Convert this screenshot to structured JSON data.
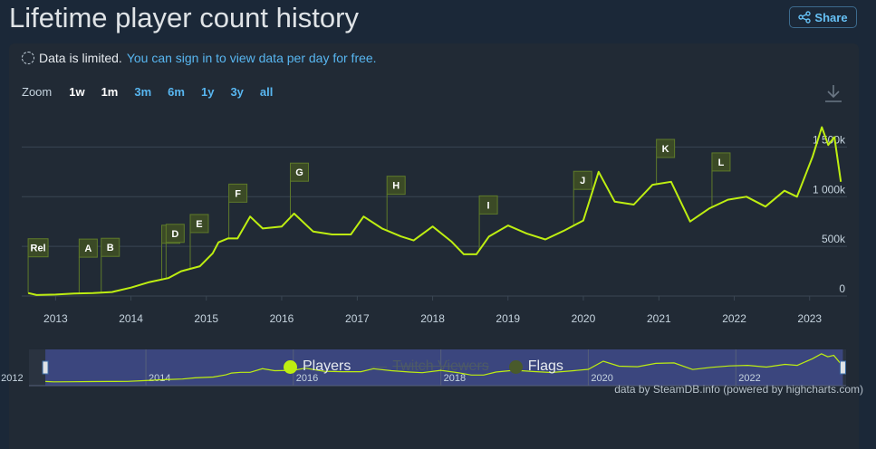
{
  "header": {
    "title": "Lifetime player count history",
    "share_label": "Share"
  },
  "notice": {
    "text": "Data is limited.",
    "link": "You can sign in to view data per day for free."
  },
  "zoom": {
    "label": "Zoom",
    "buttons": [
      "1w",
      "1m",
      "3m",
      "6m",
      "1y",
      "3y",
      "all"
    ],
    "active": [
      "1w",
      "1m"
    ]
  },
  "legend": [
    {
      "name": "Players",
      "color": "#beee11",
      "visible": true
    },
    {
      "name": "Twitch Viewers",
      "color": "#4d5a66",
      "visible": false
    },
    {
      "name": "Flags",
      "color": "#495a2b",
      "visible": true
    }
  ],
  "credits": "data by SteamDB.info (powered by highcharts.com)",
  "colors": {
    "line": "#beee11",
    "flag_bg": "#3b4a26",
    "flag_border": "#5e7a2a",
    "navigator_mask": "#3e4a8a"
  },
  "chart_data": {
    "type": "line",
    "xlabel": "",
    "ylabel": "",
    "xlim": [
      "2012-07-21",
      "2023-07-01"
    ],
    "ylim": [
      0,
      1850000
    ],
    "y_ticks": [
      0,
      500000,
      1000000,
      1500000
    ],
    "y_tick_labels": [
      "0",
      "500k",
      "1 000k",
      "1 500k"
    ],
    "x_tick_labels": [
      "2013",
      "2014",
      "2015",
      "2016",
      "2017",
      "2018",
      "2019",
      "2020",
      "2021",
      "2022",
      "2023"
    ],
    "grid": true,
    "series": [
      {
        "name": "Players",
        "points": [
          [
            "2012-08-21",
            30000
          ],
          [
            "2012-10-01",
            10000
          ],
          [
            "2013-01-01",
            15000
          ],
          [
            "2013-04-01",
            25000
          ],
          [
            "2013-07-01",
            30000
          ],
          [
            "2013-10-01",
            40000
          ],
          [
            "2014-01-01",
            85000
          ],
          [
            "2014-04-01",
            140000
          ],
          [
            "2014-07-01",
            180000
          ],
          [
            "2014-09-01",
            250000
          ],
          [
            "2014-12-01",
            300000
          ],
          [
            "2015-02-01",
            430000
          ],
          [
            "2015-03-01",
            540000
          ],
          [
            "2015-04-15",
            580000
          ],
          [
            "2015-06-01",
            580000
          ],
          [
            "2015-08-01",
            800000
          ],
          [
            "2015-10-01",
            680000
          ],
          [
            "2016-01-01",
            700000
          ],
          [
            "2016-03-01",
            830000
          ],
          [
            "2016-06-01",
            650000
          ],
          [
            "2016-09-01",
            620000
          ],
          [
            "2016-12-01",
            620000
          ],
          [
            "2017-02-01",
            800000
          ],
          [
            "2017-05-01",
            680000
          ],
          [
            "2017-08-01",
            600000
          ],
          [
            "2017-10-01",
            560000
          ],
          [
            "2018-01-01",
            700000
          ],
          [
            "2018-04-01",
            550000
          ],
          [
            "2018-06-01",
            420000
          ],
          [
            "2018-08-01",
            420000
          ],
          [
            "2018-10-01",
            600000
          ],
          [
            "2019-01-01",
            710000
          ],
          [
            "2019-04-01",
            630000
          ],
          [
            "2019-07-01",
            570000
          ],
          [
            "2019-10-01",
            660000
          ],
          [
            "2020-01-01",
            760000
          ],
          [
            "2020-03-15",
            1250000
          ],
          [
            "2020-06-01",
            950000
          ],
          [
            "2020-09-01",
            920000
          ],
          [
            "2020-12-01",
            1120000
          ],
          [
            "2021-03-01",
            1150000
          ],
          [
            "2021-06-01",
            750000
          ],
          [
            "2021-09-01",
            880000
          ],
          [
            "2021-12-01",
            970000
          ],
          [
            "2022-03-01",
            1000000
          ],
          [
            "2022-06-01",
            900000
          ],
          [
            "2022-09-01",
            1060000
          ],
          [
            "2022-11-01",
            1000000
          ],
          [
            "2023-01-15",
            1400000
          ],
          [
            "2023-03-01",
            1700000
          ],
          [
            "2023-04-01",
            1520000
          ],
          [
            "2023-05-01",
            1600000
          ],
          [
            "2023-06-01",
            1150000
          ]
        ]
      }
    ],
    "flags": [
      {
        "label": "Rel",
        "date": "2012-08-21"
      },
      {
        "label": "A",
        "date": "2013-04-25"
      },
      {
        "label": "B",
        "date": "2013-08-10"
      },
      {
        "label": "C",
        "date": "2014-05-30"
      },
      {
        "label": "D",
        "date": "2014-06-20"
      },
      {
        "label": "E",
        "date": "2014-10-15"
      },
      {
        "label": "F",
        "date": "2015-04-20"
      },
      {
        "label": "G",
        "date": "2016-02-12"
      },
      {
        "label": "H",
        "date": "2017-05-25"
      },
      {
        "label": "I",
        "date": "2018-08-15"
      },
      {
        "label": "J",
        "date": "2019-11-15"
      },
      {
        "label": "K",
        "date": "2020-12-20"
      },
      {
        "label": "L",
        "date": "2021-09-15"
      }
    ],
    "navigator": {
      "x_tick_labels": [
        "2012",
        "2014",
        "2016",
        "2018",
        "2020",
        "2022"
      ],
      "range": [
        "2012-08-21",
        "2023-06-15"
      ]
    }
  }
}
